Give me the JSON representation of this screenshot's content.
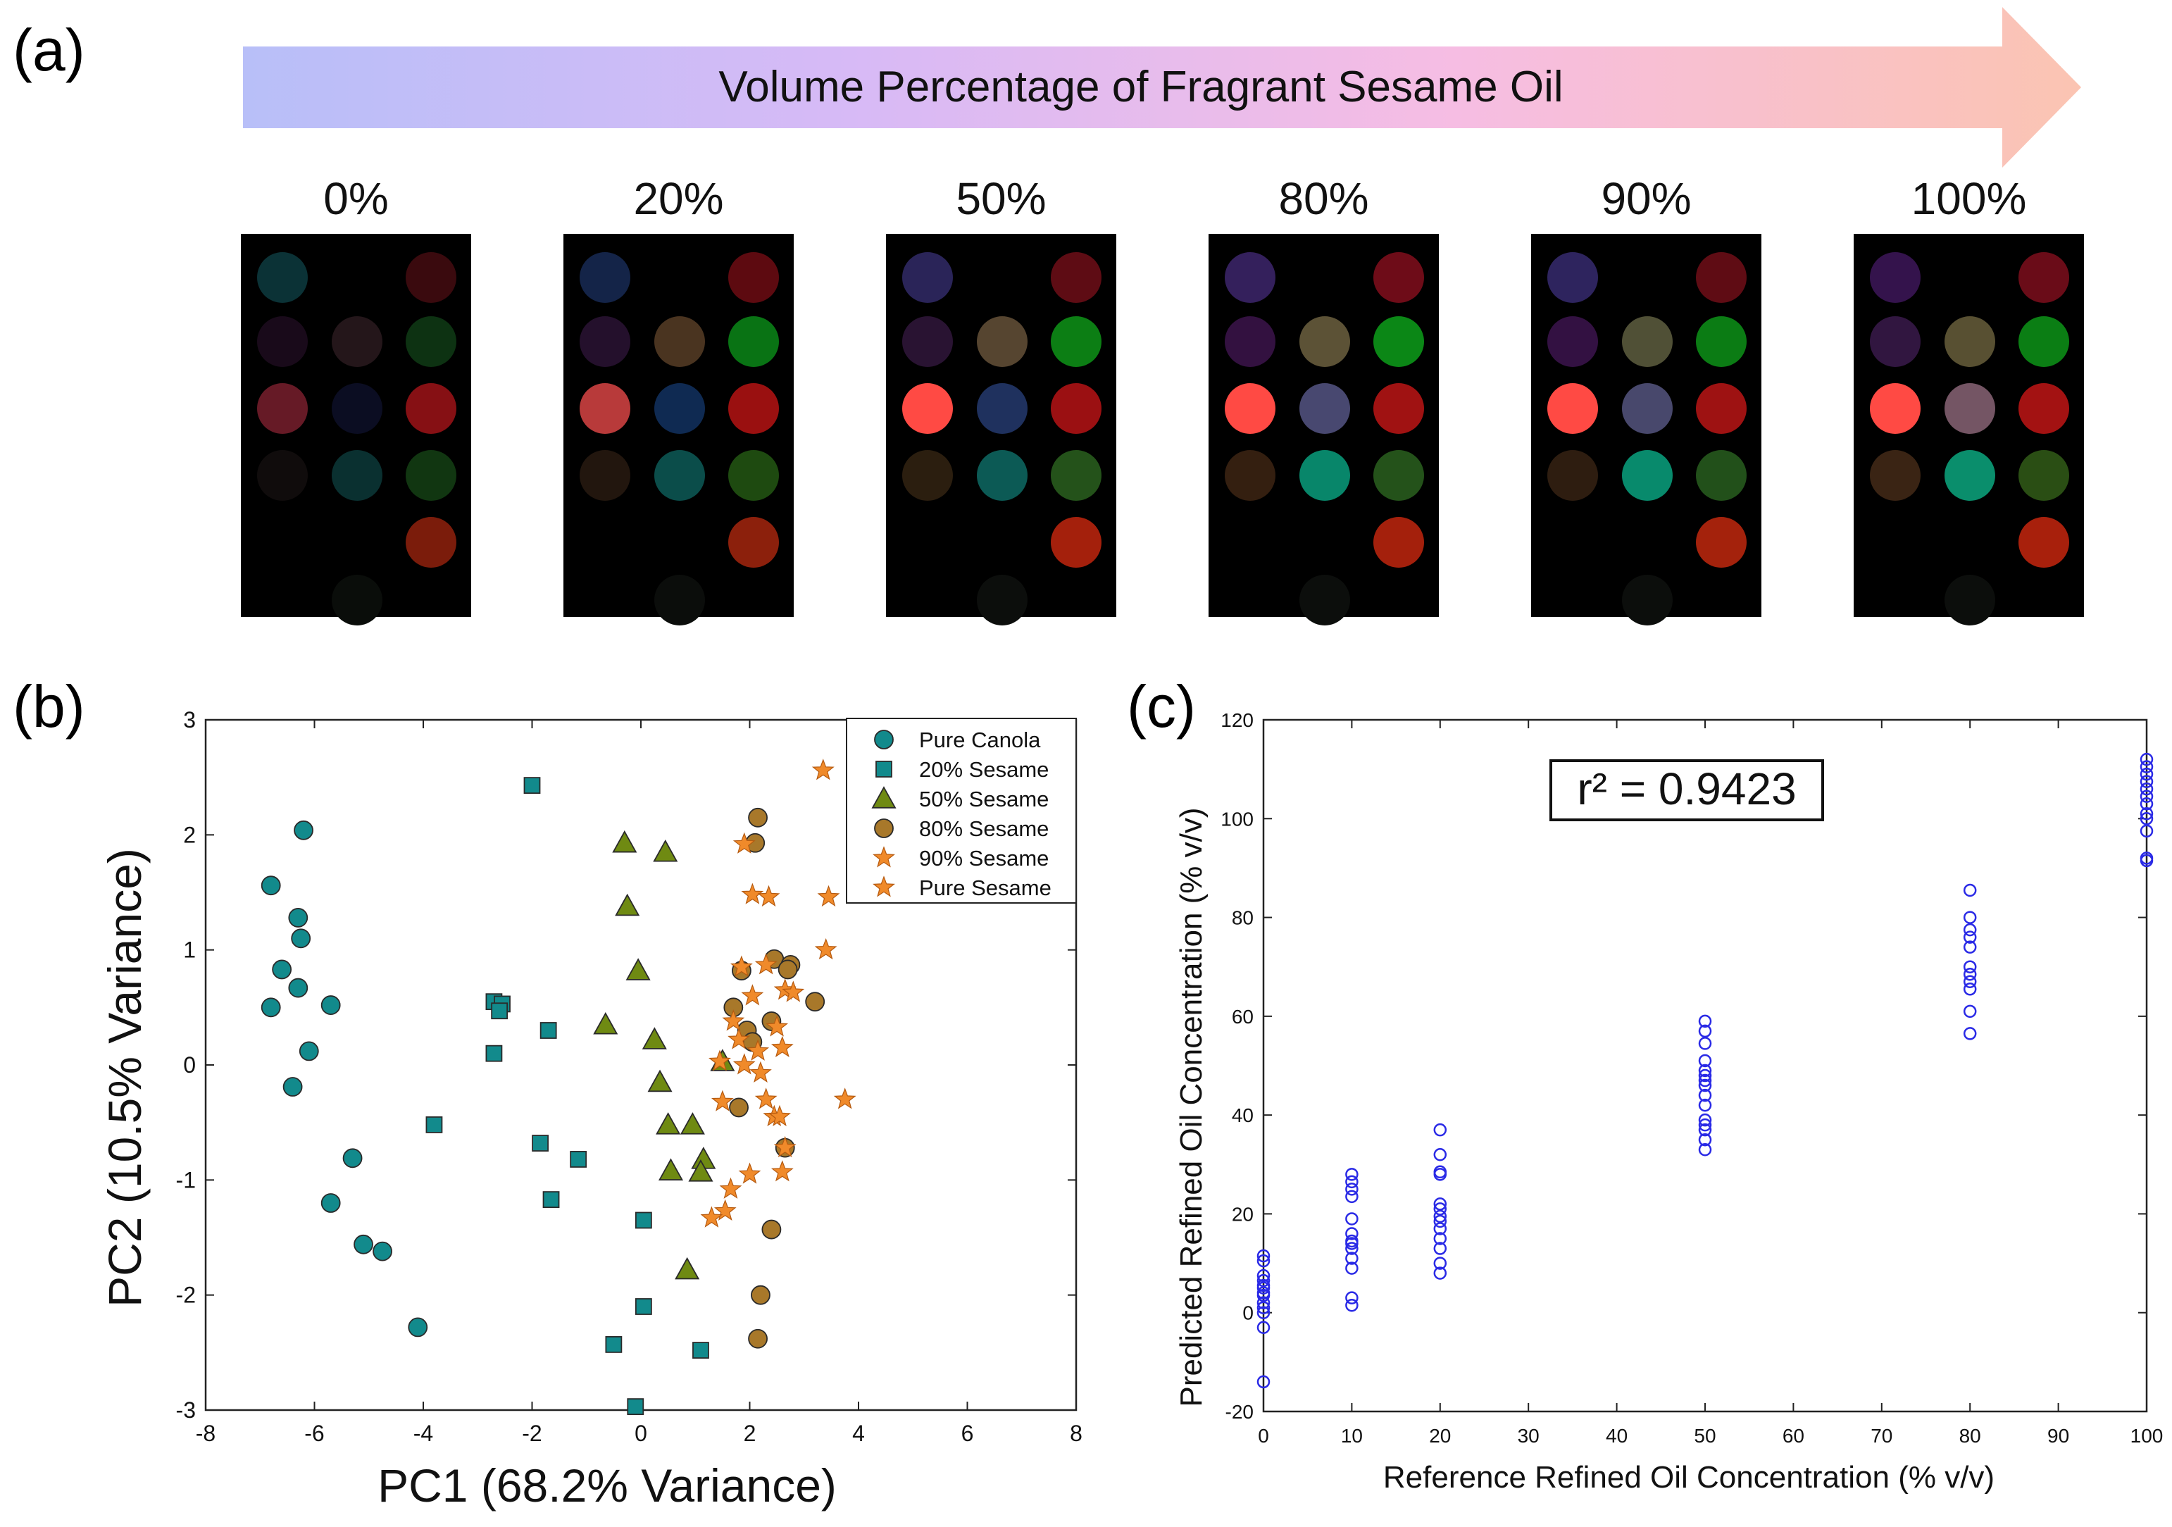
{
  "panel_labels": {
    "a": "(a)",
    "b": "(b)",
    "c": "(c)"
  },
  "panel_a": {
    "arrow_label": "Volume Percentage of Fragrant Sesame Oil",
    "arrow_gradient": [
      "#b8bff8",
      "#d7baf6",
      "#f6bde3",
      "#fbc4b2"
    ],
    "arrays": [
      {
        "label": "0%",
        "spots": [
          [
            "#0b3236",
            null,
            "#3a0a0e"
          ],
          [
            "#190a1a",
            "#24161a",
            "#0d3212"
          ],
          [
            "#661a26",
            "#0b0d22",
            "#861014"
          ],
          [
            "#100c0c",
            "#0a3030",
            "#113611"
          ],
          [
            null,
            null,
            "#7b1c0b"
          ],
          [
            null,
            "#0a0d0a",
            null
          ]
        ]
      },
      {
        "label": "20%",
        "spots": [
          [
            "#142448",
            null,
            "#5d0a10"
          ],
          [
            "#24102c",
            "#4a3420",
            "#097314"
          ],
          [
            "#b83a3a",
            "#0f2a52",
            "#9a1010"
          ],
          [
            "#22160e",
            "#0b4d4a",
            "#1e4a10"
          ],
          [
            null,
            null,
            "#8c200c"
          ],
          [
            null,
            "#0b0d0b",
            null
          ]
        ]
      },
      {
        "label": "50%",
        "spots": [
          [
            "#2a2458",
            null,
            "#5e0c14"
          ],
          [
            "#291332",
            "#564530",
            "#0c7e14"
          ],
          [
            "#ff4a44",
            "#1f315e",
            "#9b1012"
          ],
          [
            "#2b1e0f",
            "#0c5a55",
            "#24521a"
          ],
          [
            null,
            null,
            "#a4200c"
          ],
          [
            null,
            "#0c0e0c",
            null
          ]
        ]
      },
      {
        "label": "80%",
        "spots": [
          [
            "#34205c",
            null,
            "#6e0c18"
          ],
          [
            "#331140",
            "#5c5236",
            "#0b8716"
          ],
          [
            "#ff4a44",
            "#484870",
            "#a01212"
          ],
          [
            "#341f10",
            "#08866a",
            "#24521a"
          ],
          [
            null,
            null,
            "#a4200c"
          ],
          [
            null,
            "#0c0e0c",
            null
          ]
        ]
      },
      {
        "label": "90%",
        "spots": [
          [
            "#2e245e",
            null,
            "#5f0c14"
          ],
          [
            "#331142",
            "#505036",
            "#0b7c14"
          ],
          [
            "#ff4a44",
            "#48486c",
            "#9e1212"
          ],
          [
            "#2e1d10",
            "#088a6c",
            "#22501a"
          ],
          [
            null,
            null,
            "#a4220c"
          ],
          [
            null,
            "#0c0e0c",
            null
          ]
        ]
      },
      {
        "label": "100%",
        "spots": [
          [
            "#34134c",
            null,
            "#6a0c18"
          ],
          [
            "#311640",
            "#585032",
            "#0b7e14"
          ],
          [
            "#ff4a44",
            "#745564",
            "#a31212"
          ],
          [
            "#3a2414",
            "#0a8e6c",
            "#2a4e14"
          ],
          [
            null,
            null,
            "#a8200c"
          ],
          [
            null,
            "#0c0e0c",
            null
          ]
        ]
      }
    ]
  },
  "chart_data": [
    {
      "type": "scatter",
      "panel": "b",
      "xlabel": "PC1 (68.2% Variance)",
      "ylabel": "PC2 (10.5% Variance)",
      "xlim": [
        -8,
        8
      ],
      "ylim": [
        -3,
        3
      ],
      "xticks": [
        -8,
        -6,
        -4,
        -2,
        0,
        2,
        4,
        6,
        8
      ],
      "yticks": [
        -3,
        -2,
        -1,
        0,
        1,
        2,
        3
      ],
      "xtick_labels": [
        "-8",
        "-6",
        "-4",
        "-2",
        "0",
        "2",
        "4",
        "6",
        "8"
      ],
      "ytick_labels": [
        "-3",
        "-2",
        "-1",
        "0",
        "1",
        "2",
        "3"
      ],
      "legend_position": "top-right",
      "series": [
        {
          "name": "Pure Canola",
          "marker": "circle",
          "color": "#128a8c",
          "points": [
            [
              -6.2,
              2.04
            ],
            [
              -6.8,
              1.56
            ],
            [
              -6.3,
              1.28
            ],
            [
              -6.25,
              1.1
            ],
            [
              -6.6,
              0.83
            ],
            [
              -6.3,
              0.67
            ],
            [
              -5.7,
              0.52
            ],
            [
              -6.8,
              0.5
            ],
            [
              -6.1,
              0.12
            ],
            [
              -6.4,
              -0.19
            ],
            [
              -5.3,
              -0.81
            ],
            [
              -5.7,
              -1.2
            ],
            [
              -5.1,
              -1.56
            ],
            [
              -4.75,
              -1.62
            ],
            [
              -4.1,
              -2.28
            ]
          ]
        },
        {
          "name": "20% Sesame",
          "marker": "square",
          "color": "#128a8c",
          "points": [
            [
              -2.0,
              2.43
            ],
            [
              -2.7,
              0.55
            ],
            [
              -2.55,
              0.53
            ],
            [
              -2.6,
              0.47
            ],
            [
              -1.7,
              0.3
            ],
            [
              -2.7,
              0.1
            ],
            [
              -3.8,
              -0.52
            ],
            [
              -1.85,
              -0.68
            ],
            [
              -1.15,
              -0.82
            ],
            [
              -1.65,
              -1.17
            ],
            [
              0.05,
              -1.35
            ],
            [
              0.05,
              -2.1
            ],
            [
              -0.5,
              -2.43
            ],
            [
              1.1,
              -2.48
            ],
            [
              -0.1,
              -2.97
            ]
          ]
        },
        {
          "name": "50% Sesame",
          "marker": "triangle",
          "color": "#6f8a12",
          "points": [
            [
              -0.3,
              1.93
            ],
            [
              0.45,
              1.85
            ],
            [
              -0.25,
              1.38
            ],
            [
              -0.05,
              0.82
            ],
            [
              -0.65,
              0.35
            ],
            [
              0.25,
              0.22
            ],
            [
              1.5,
              0.03
            ],
            [
              0.35,
              -0.15
            ],
            [
              0.5,
              -0.52
            ],
            [
              0.95,
              -0.52
            ],
            [
              1.15,
              -0.82
            ],
            [
              0.55,
              -0.92
            ],
            [
              1.1,
              -0.93
            ],
            [
              0.85,
              -1.78
            ]
          ]
        },
        {
          "name": "80% Sesame",
          "marker": "circle",
          "color": "#a8782a",
          "points": [
            [
              2.15,
              2.15
            ],
            [
              2.1,
              1.93
            ],
            [
              1.85,
              0.82
            ],
            [
              2.45,
              0.92
            ],
            [
              2.75,
              0.87
            ],
            [
              2.7,
              0.83
            ],
            [
              3.2,
              0.55
            ],
            [
              1.7,
              0.5
            ],
            [
              2.4,
              0.38
            ],
            [
              1.95,
              0.3
            ],
            [
              2.05,
              0.2
            ],
            [
              1.8,
              -0.37
            ],
            [
              2.65,
              -0.72
            ],
            [
              2.4,
              -1.43
            ],
            [
              2.2,
              -2.0
            ],
            [
              2.15,
              -2.38
            ]
          ]
        },
        {
          "name": "90% Sesame",
          "marker": "star",
          "color": "#f08a2a",
          "points": [
            [
              1.9,
              1.92
            ],
            [
              2.05,
              1.48
            ],
            [
              1.85,
              0.85
            ],
            [
              2.3,
              0.87
            ],
            [
              2.65,
              0.65
            ],
            [
              1.7,
              0.38
            ],
            [
              2.5,
              0.33
            ],
            [
              1.8,
              0.22
            ],
            [
              2.6,
              0.15
            ],
            [
              1.45,
              0.03
            ],
            [
              2.2,
              -0.07
            ],
            [
              1.5,
              -0.32
            ],
            [
              2.45,
              -0.45
            ],
            [
              2.65,
              -0.72
            ],
            [
              2.0,
              -0.95
            ],
            [
              1.65,
              -1.08
            ],
            [
              1.55,
              -1.27
            ],
            [
              1.3,
              -1.33
            ]
          ]
        },
        {
          "name": "Pure Sesame",
          "marker": "star",
          "color": "#f08a2a",
          "points": [
            [
              3.35,
              2.56
            ],
            [
              3.45,
              1.46
            ],
            [
              2.35,
              1.46
            ],
            [
              3.4,
              1.0
            ],
            [
              2.8,
              0.63
            ],
            [
              2.05,
              0.6
            ],
            [
              2.3,
              -0.3
            ],
            [
              3.75,
              -0.3
            ],
            [
              2.55,
              -0.45
            ],
            [
              2.15,
              0.12
            ],
            [
              1.9,
              0.0
            ],
            [
              2.6,
              -0.93
            ]
          ]
        }
      ]
    },
    {
      "type": "scatter",
      "panel": "c",
      "xlabel": "Reference Refined Oil Concentration (% v/v)",
      "ylabel": "Predicted Refined Oil Concentration (% v/v)",
      "xlim": [
        0,
        100
      ],
      "ylim": [
        -20,
        120
      ],
      "xticks": [
        0,
        10,
        20,
        30,
        40,
        50,
        60,
        70,
        80,
        90,
        100
      ],
      "yticks": [
        -20,
        0,
        20,
        40,
        60,
        80,
        100,
        120
      ],
      "xtick_labels": [
        "0",
        "10",
        "20",
        "30",
        "40",
        "50",
        "60",
        "70",
        "80",
        "90",
        "100"
      ],
      "ytick_labels": [
        "-20",
        "0",
        "20",
        "40",
        "60",
        "80",
        "100",
        "120"
      ],
      "annotation": "r² = 0.9423",
      "marker": "open-circle",
      "color": "#2a2ae6",
      "groups": [
        {
          "x": 0,
          "y": [
            11.5,
            10.5,
            7.5,
            6.5,
            5.5,
            5.0,
            4.0,
            3.5,
            2.0,
            1.0,
            0.0,
            -3.0,
            -14.0
          ]
        },
        {
          "x": 10,
          "y": [
            28.0,
            26.5,
            25.0,
            23.5,
            19.0,
            16.0,
            14.5,
            14.0,
            13.0,
            11.0,
            9.0,
            3.0,
            1.5
          ]
        },
        {
          "x": 20,
          "y": [
            37.0,
            32.0,
            28.5,
            28.0,
            22.0,
            21.0,
            19.5,
            18.5,
            17.0,
            15.0,
            13.0,
            10.0,
            8.0
          ]
        },
        {
          "x": 50,
          "y": [
            59.0,
            57.0,
            54.5,
            51.0,
            49.0,
            48.0,
            47.0,
            46.0,
            44.0,
            42.0,
            39.0,
            38.0,
            37.0,
            35.0,
            33.0
          ]
        },
        {
          "x": 80,
          "y": [
            85.5,
            80.0,
            77.5,
            76.0,
            74.0,
            70.0,
            68.5,
            67.0,
            65.5,
            61.0,
            56.5
          ]
        },
        {
          "x": 100,
          "y": [
            112.0,
            110.5,
            109.0,
            107.5,
            106.0,
            104.5,
            103.0,
            101.0,
            100.0,
            97.5,
            92.0,
            91.5
          ]
        }
      ]
    }
  ]
}
